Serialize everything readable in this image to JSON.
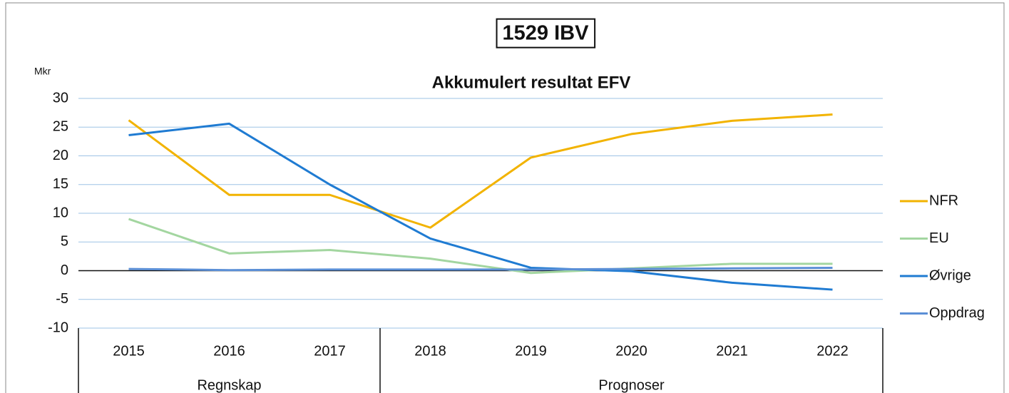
{
  "chart_data": {
    "type": "line",
    "title": "1529 IBV",
    "subtitle": "Akkumulert resultat EFV",
    "y_label": "Mkr",
    "categories": [
      "2015",
      "2016",
      "2017",
      "2018",
      "2019",
      "2020",
      "2021",
      "2022"
    ],
    "groups": [
      {
        "name": "Regnskap",
        "categories": [
          "2015",
          "2016",
          "2017"
        ]
      },
      {
        "name": "Prognoser",
        "categories": [
          "2018",
          "2019",
          "2020",
          "2021",
          "2022"
        ]
      }
    ],
    "series": [
      {
        "name": "NFR",
        "color": "#f2b300",
        "values": [
          26.2,
          13.2,
          13.2,
          7.5,
          19.7,
          23.8,
          26.1,
          27.2
        ]
      },
      {
        "name": "EU",
        "color": "#a3d6a0",
        "values": [
          9.0,
          3.0,
          3.6,
          2.1,
          -0.4,
          0.4,
          1.2,
          1.2
        ]
      },
      {
        "name": "Øvrige",
        "color": "#1f7bd2",
        "values": [
          23.6,
          25.6,
          15.0,
          5.6,
          0.5,
          -0.1,
          -2.1,
          -3.3
        ]
      },
      {
        "name": "Oppdrag",
        "color": "#5b8fd6",
        "values": [
          0.3,
          0.1,
          0.2,
          0.2,
          0.2,
          0.3,
          0.4,
          0.5
        ]
      }
    ],
    "ylim": [
      -10,
      30
    ],
    "yticks": [
      -10,
      -5,
      0,
      5,
      10,
      15,
      20,
      25,
      30
    ],
    "grid": true,
    "legend": "right"
  }
}
